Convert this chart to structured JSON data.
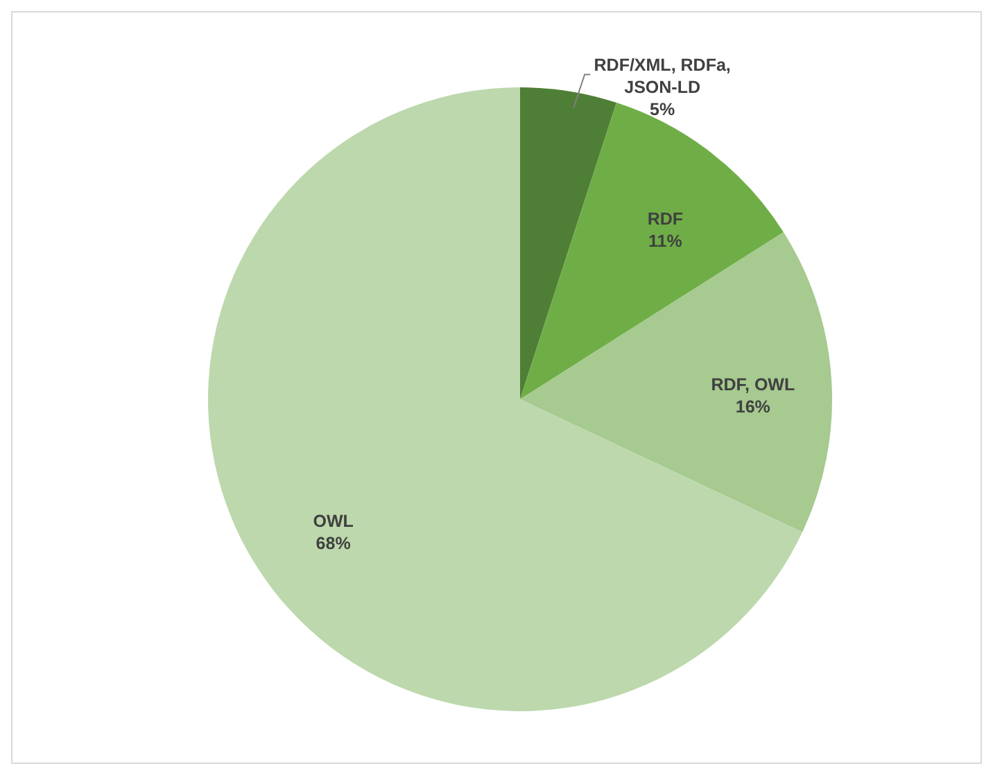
{
  "chart_data": {
    "type": "pie",
    "categories": [
      "RDF/XML, RDFa, JSON-LD",
      "RDF",
      "RDF, OWL",
      "OWL"
    ],
    "values": [
      5,
      11,
      16,
      68
    ],
    "colors": [
      "#4f7f36",
      "#6fae47",
      "#a6ca8f",
      "#bcd8ac"
    ],
    "value_labels": [
      "5%",
      "11%",
      "16%",
      "68%"
    ]
  }
}
